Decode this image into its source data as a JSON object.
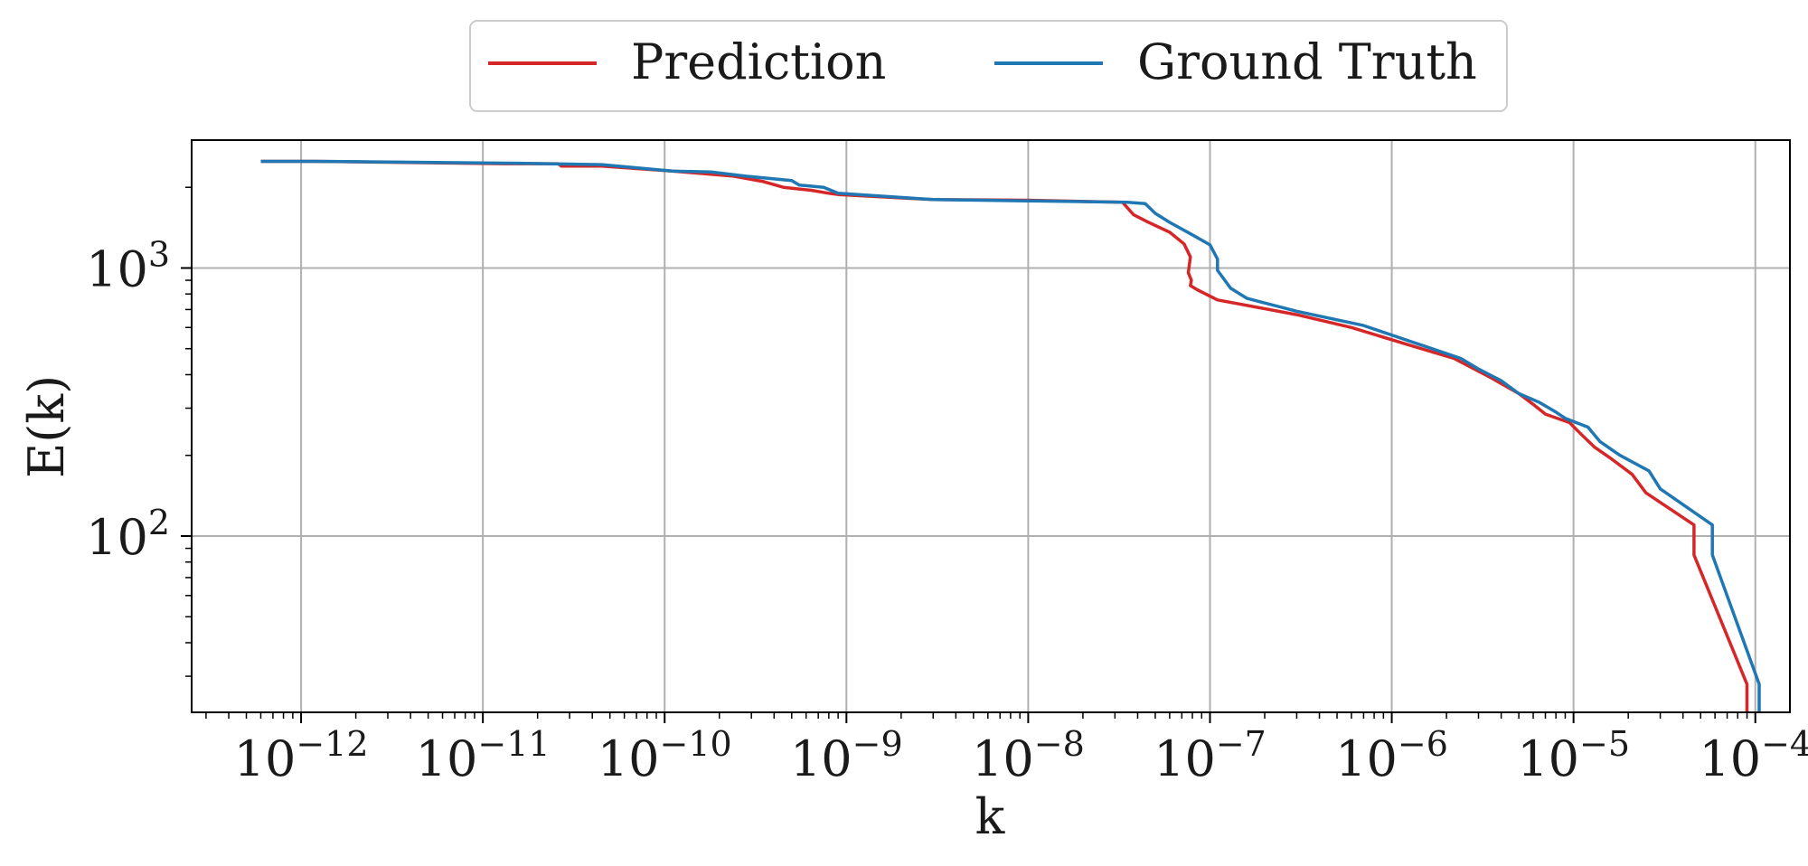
{
  "chart_data": {
    "type": "line",
    "title": "",
    "xlabel": "k",
    "ylabel": "E(k)",
    "xscale": "log",
    "yscale": "log",
    "xlim": [
      2.5e-13,
      0.000155
    ],
    "ylim": [
      22,
      3000
    ],
    "grid": true,
    "legend_position": "top-center",
    "x_ticks": [
      {
        "value": 1e-12,
        "base": "10",
        "exp": "−12"
      },
      {
        "value": 1e-11,
        "base": "10",
        "exp": "−11"
      },
      {
        "value": 1e-10,
        "base": "10",
        "exp": "−10"
      },
      {
        "value": 1e-09,
        "base": "10",
        "exp": "−9"
      },
      {
        "value": 1e-08,
        "base": "10",
        "exp": "−8"
      },
      {
        "value": 1e-07,
        "base": "10",
        "exp": "−7"
      },
      {
        "value": 1e-06,
        "base": "10",
        "exp": "−6"
      },
      {
        "value": 1e-05,
        "base": "10",
        "exp": "−5"
      },
      {
        "value": 0.0001,
        "base": "10",
        "exp": "−4"
      }
    ],
    "y_ticks": [
      {
        "value": 100,
        "base": "10",
        "exp": "2"
      },
      {
        "value": 1000,
        "base": "10",
        "exp": "3"
      }
    ],
    "series": [
      {
        "name": "Prediction",
        "color": "#d62728",
        "points": [
          [
            6e-13,
            2500
          ],
          [
            1.2e-12,
            2500
          ],
          [
            1.3e-11,
            2450
          ],
          [
            2.6e-11,
            2450
          ],
          [
            2.7e-11,
            2400
          ],
          [
            4.5e-11,
            2400
          ],
          [
            1.1e-10,
            2300
          ],
          [
            2.4e-10,
            2200
          ],
          [
            3.5e-10,
            2100
          ],
          [
            4.5e-10,
            2000
          ],
          [
            6.4e-10,
            1950
          ],
          [
            8e-10,
            1900
          ],
          [
            9e-10,
            1880
          ],
          [
            3e-09,
            1800
          ],
          [
            1e-08,
            1790
          ],
          [
            3.3e-08,
            1760
          ],
          [
            3.8e-08,
            1580
          ],
          [
            4.5e-08,
            1490
          ],
          [
            6e-08,
            1360
          ],
          [
            7.2e-08,
            1230
          ],
          [
            7.8e-08,
            1100
          ],
          [
            7.6e-08,
            960
          ],
          [
            7.9e-08,
            900
          ],
          [
            7.8e-08,
            860
          ],
          [
            8.5e-08,
            830
          ],
          [
            1.1e-07,
            760
          ],
          [
            3e-07,
            670
          ],
          [
            6e-07,
            600
          ],
          [
            1.2e-06,
            520
          ],
          [
            2.2e-06,
            460
          ],
          [
            3.5e-06,
            390
          ],
          [
            5e-06,
            340
          ],
          [
            6e-06,
            310
          ],
          [
            7e-06,
            285
          ],
          [
            9.5e-06,
            265
          ],
          [
            1.1e-05,
            240
          ],
          [
            1.3e-05,
            215
          ],
          [
            1.6e-05,
            195
          ],
          [
            2.1e-05,
            170
          ],
          [
            2.5e-05,
            145
          ],
          [
            4.6e-05,
            110
          ],
          [
            4.6e-05,
            85
          ],
          [
            9e-05,
            28
          ],
          [
            9e-05,
            22
          ]
        ]
      },
      {
        "name": "Ground Truth",
        "color": "#1f77b4",
        "points": [
          [
            6e-13,
            2500
          ],
          [
            1.2e-12,
            2500
          ],
          [
            1.6e-11,
            2460
          ],
          [
            4.5e-11,
            2430
          ],
          [
            1.1e-10,
            2300
          ],
          [
            1.8e-10,
            2280
          ],
          [
            2.8e-10,
            2200
          ],
          [
            5e-10,
            2120
          ],
          [
            5.5e-10,
            2040
          ],
          [
            7.5e-10,
            2000
          ],
          [
            9e-10,
            1900
          ],
          [
            3e-09,
            1800
          ],
          [
            1e-08,
            1780
          ],
          [
            3.5e-08,
            1760
          ],
          [
            4.4e-08,
            1740
          ],
          [
            5e-08,
            1600
          ],
          [
            6e-08,
            1480
          ],
          [
            8e-08,
            1330
          ],
          [
            1e-07,
            1220
          ],
          [
            1.1e-07,
            1080
          ],
          [
            1.1e-07,
            980
          ],
          [
            1.15e-07,
            940
          ],
          [
            1.3e-07,
            840
          ],
          [
            1.6e-07,
            770
          ],
          [
            3e-07,
            690
          ],
          [
            7e-07,
            610
          ],
          [
            1.1e-06,
            550
          ],
          [
            2.4e-06,
            460
          ],
          [
            3e-06,
            420
          ],
          [
            4e-06,
            380
          ],
          [
            5e-06,
            340
          ],
          [
            6.5e-06,
            315
          ],
          [
            8e-06,
            290
          ],
          [
            9e-06,
            275
          ],
          [
            1.2e-05,
            255
          ],
          [
            1.4e-05,
            225
          ],
          [
            1.8e-05,
            200
          ],
          [
            2.6e-05,
            175
          ],
          [
            3e-05,
            150
          ],
          [
            5.8e-05,
            110
          ],
          [
            5.8e-05,
            85
          ],
          [
            0.000105,
            28
          ],
          [
            0.000105,
            22
          ]
        ]
      }
    ]
  }
}
